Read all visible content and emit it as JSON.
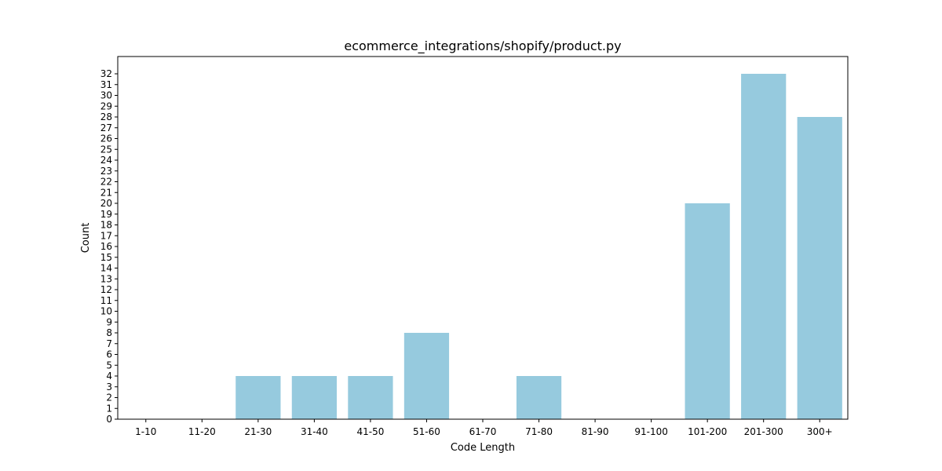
{
  "chart_data": {
    "type": "bar",
    "title": "ecommerce_integrations/shopify/product.py",
    "xlabel": "Code Length",
    "ylabel": "Count",
    "categories": [
      "1-10",
      "11-20",
      "21-30",
      "31-40",
      "41-50",
      "51-60",
      "61-70",
      "71-80",
      "81-90",
      "91-100",
      "101-200",
      "201-300",
      "300+"
    ],
    "values": [
      0,
      0,
      4,
      4,
      4,
      8,
      0,
      4,
      0,
      0,
      20,
      32,
      28
    ],
    "ylim": [
      0,
      33.6
    ],
    "yticks": [
      0,
      1,
      2,
      3,
      4,
      5,
      6,
      7,
      8,
      9,
      10,
      11,
      12,
      13,
      14,
      15,
      16,
      17,
      18,
      19,
      20,
      21,
      22,
      23,
      24,
      25,
      26,
      27,
      28,
      29,
      30,
      31,
      32
    ],
    "bar_color": "#96cade",
    "grid": false,
    "legend": "none"
  }
}
